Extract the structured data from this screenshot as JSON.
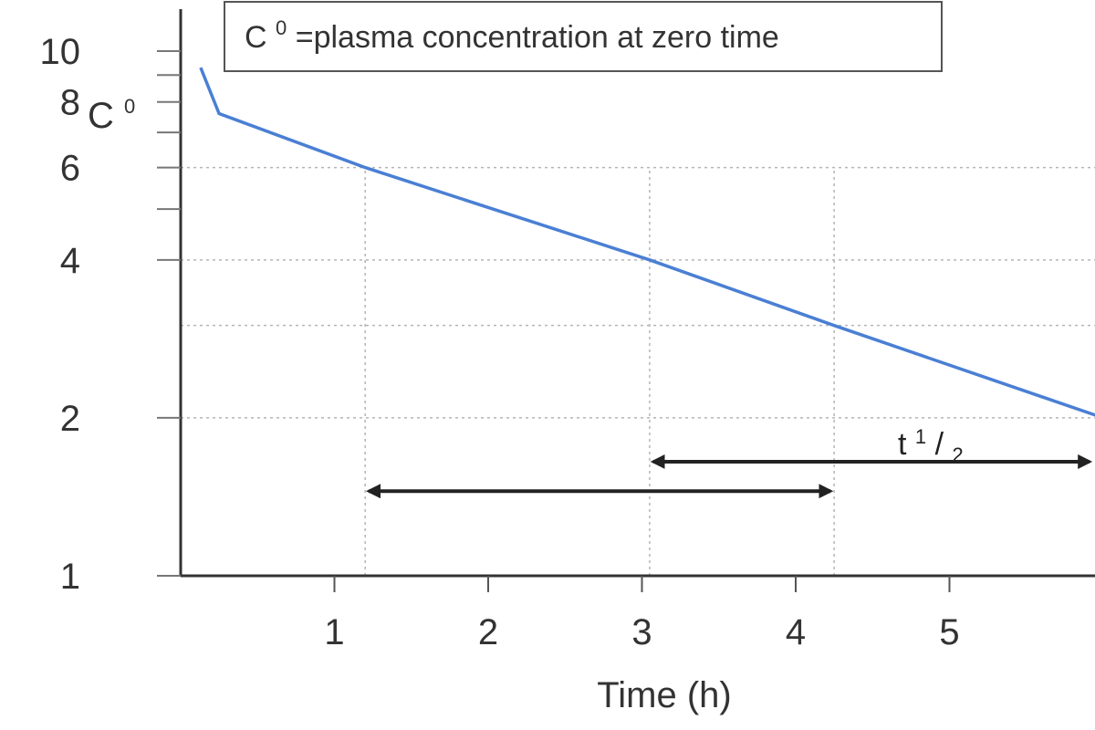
{
  "chart_data": {
    "type": "line",
    "xlabel": "Time (h)",
    "ylabel": "",
    "y_scale": "log",
    "xlim": [
      0,
      6
    ],
    "ylim": [
      1,
      10
    ],
    "x_ticks": [
      "1",
      "2",
      "3",
      "4",
      "5"
    ],
    "x_tick_values": [
      1,
      2,
      3,
      4,
      5
    ],
    "y_tick_labels": [
      {
        "value": 10,
        "label": "10"
      },
      {
        "value": 8,
        "label": "8"
      },
      {
        "value": 6,
        "label": "6"
      },
      {
        "value": 4,
        "label": "4"
      },
      {
        "value": 2,
        "label": "2"
      },
      {
        "value": 1,
        "label": "1"
      }
    ],
    "y_minor_ticks": [
      9,
      7,
      5
    ],
    "c0_label": "C",
    "c0_sup": "0",
    "c0_value": 8,
    "gridlines_y": [
      6,
      4,
      3,
      2
    ],
    "gridlines_x": [
      1.2,
      3.05,
      4.25
    ],
    "series": [
      {
        "color": "#4a7fd4",
        "points": [
          [
            0.13,
            9.3
          ],
          [
            0.25,
            7.6
          ],
          [
            1.2,
            6.0
          ],
          [
            3.05,
            4.0
          ],
          [
            4.25,
            3.0
          ],
          [
            6.0,
            2.0
          ]
        ]
      }
    ],
    "annotations": {
      "legend_box": {
        "prefix": "C",
        "sup": "0",
        "text": "=plasma concentration at zero time"
      },
      "half_life_label": {
        "t": "t ",
        "num": "1",
        "slash": "/",
        "den": "2"
      },
      "arrows": [
        {
          "from_x": 1.2,
          "to_x": 4.25,
          "y": 1.45
        },
        {
          "from_x": 3.05,
          "to_x": 6.0,
          "y": 1.65
        }
      ]
    }
  }
}
